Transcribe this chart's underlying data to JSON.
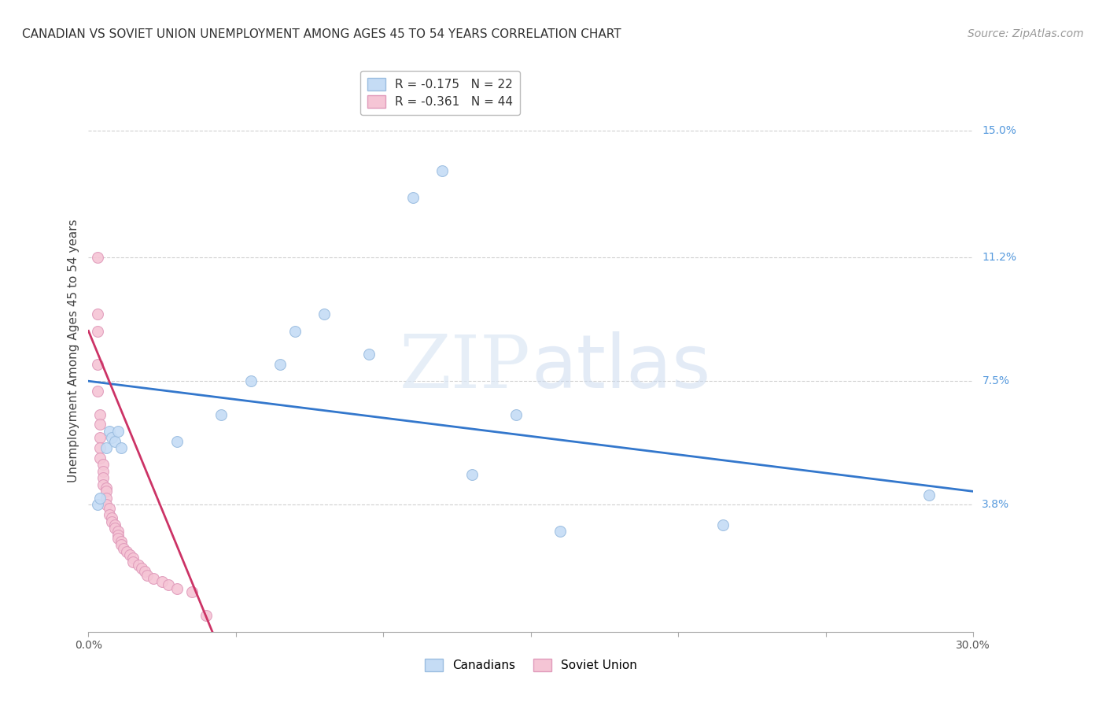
{
  "title": "CANADIAN VS SOVIET UNION UNEMPLOYMENT AMONG AGES 45 TO 54 YEARS CORRELATION CHART",
  "source": "Source: ZipAtlas.com",
  "ylabel": "Unemployment Among Ages 45 to 54 years",
  "right_yticks": [
    0.15,
    0.112,
    0.075,
    0.038
  ],
  "right_ytick_labels": [
    "15.0%",
    "11.2%",
    "7.5%",
    "3.8%"
  ],
  "xlim": [
    0.0,
    0.3
  ],
  "ylim": [
    0.0,
    0.168
  ],
  "legend_entries": [
    {
      "label": "R = -0.175   N = 22",
      "color": "#aaccff"
    },
    {
      "label": "R = -0.361   N = 44",
      "color": "#ffaabb"
    }
  ],
  "legend_labels_bottom": [
    "Canadians",
    "Soviet Union"
  ],
  "canadians_x": [
    0.003,
    0.004,
    0.006,
    0.007,
    0.008,
    0.009,
    0.01,
    0.011,
    0.03,
    0.045,
    0.055,
    0.065,
    0.07,
    0.08,
    0.095,
    0.11,
    0.12,
    0.13,
    0.145,
    0.16,
    0.215,
    0.285
  ],
  "canadians_y": [
    0.038,
    0.04,
    0.055,
    0.06,
    0.058,
    0.057,
    0.06,
    0.055,
    0.057,
    0.065,
    0.075,
    0.08,
    0.09,
    0.095,
    0.083,
    0.13,
    0.138,
    0.047,
    0.065,
    0.03,
    0.032,
    0.041
  ],
  "soviet_x": [
    0.003,
    0.003,
    0.003,
    0.003,
    0.003,
    0.004,
    0.004,
    0.004,
    0.004,
    0.004,
    0.005,
    0.005,
    0.005,
    0.005,
    0.006,
    0.006,
    0.006,
    0.006,
    0.007,
    0.007,
    0.008,
    0.008,
    0.009,
    0.009,
    0.01,
    0.01,
    0.01,
    0.011,
    0.011,
    0.012,
    0.013,
    0.014,
    0.015,
    0.015,
    0.017,
    0.018,
    0.019,
    0.02,
    0.022,
    0.025,
    0.027,
    0.03,
    0.035,
    0.04
  ],
  "soviet_y": [
    0.112,
    0.095,
    0.09,
    0.08,
    0.072,
    0.065,
    0.062,
    0.058,
    0.055,
    0.052,
    0.05,
    0.048,
    0.046,
    0.044,
    0.043,
    0.042,
    0.04,
    0.038,
    0.037,
    0.035,
    0.034,
    0.033,
    0.032,
    0.031,
    0.03,
    0.029,
    0.028,
    0.027,
    0.026,
    0.025,
    0.024,
    0.023,
    0.022,
    0.021,
    0.02,
    0.019,
    0.018,
    0.017,
    0.016,
    0.015,
    0.014,
    0.013,
    0.012,
    0.005
  ],
  "canadian_trend_x": [
    0.0,
    0.3
  ],
  "canadian_trend_y": [
    0.075,
    0.042
  ],
  "soviet_trend_x": [
    0.0,
    0.042
  ],
  "soviet_trend_y": [
    0.09,
    0.0
  ],
  "watermark_zip": "ZIP",
  "watermark_atlas": "atlas",
  "background_color": "#ffffff",
  "grid_color": "#d0d0d0",
  "canadian_color": "#c5dcf5",
  "canadian_edge_color": "#9bbde0",
  "soviet_color": "#f5c5d5",
  "soviet_edge_color": "#e09bbb",
  "canadian_trend_color": "#3377cc",
  "soviet_trend_color": "#cc3366",
  "right_label_color": "#5599dd",
  "title_fontsize": 11,
  "source_fontsize": 10,
  "ylabel_fontsize": 11,
  "tick_fontsize": 10,
  "legend_fontsize": 11,
  "marker_size": 100
}
